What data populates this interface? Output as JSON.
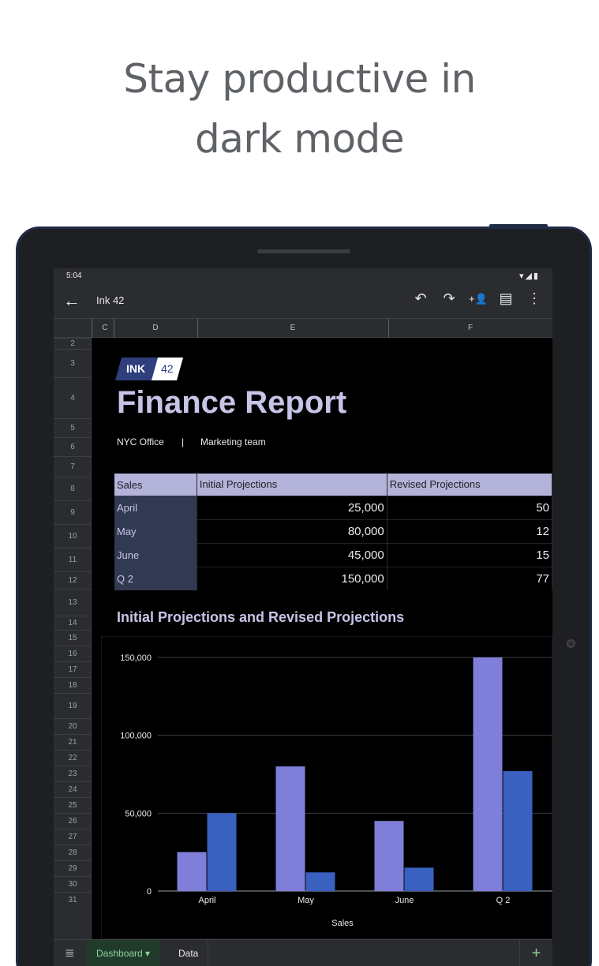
{
  "headline": {
    "line1": "Stay productive in",
    "line2": "dark mode"
  },
  "status": {
    "time": "5:04",
    "icons": "▾◢▮"
  },
  "appbar": {
    "title": "Ink 42",
    "back_icon": "←",
    "undo_icon": "↶",
    "redo_icon": "↷",
    "share_icon": "+👤",
    "comment_icon": "▤",
    "more_icon": "⋮"
  },
  "columns": [
    "C",
    "D",
    "E",
    "F"
  ],
  "rows": [
    "2",
    "3",
    "4",
    "5",
    "6",
    "7",
    "8",
    "9",
    "10",
    "11",
    "12",
    "13",
    "14",
    "15",
    "16",
    "17",
    "18",
    "19",
    "20",
    "21",
    "22",
    "23",
    "24",
    "25",
    "26",
    "27",
    "28",
    "29",
    "30",
    "31"
  ],
  "logo": {
    "left": "INK",
    "right": "42"
  },
  "report": {
    "title": "Finance Report",
    "office": "NYC Office",
    "divider": "|",
    "team": "Marketing team"
  },
  "table": {
    "headers": [
      "Sales",
      "Initial Projections",
      "Revised Projections"
    ],
    "rows": [
      [
        "April",
        "25,000",
        "50"
      ],
      [
        "May",
        "80,000",
        "12"
      ],
      [
        "June",
        "45,000",
        "15"
      ],
      [
        "Q 2",
        "150,000",
        "77"
      ]
    ]
  },
  "chart_title": "Initial Projections and Revised Projections",
  "chart_data": {
    "type": "bar",
    "categories": [
      "April",
      "May",
      "June",
      "Q 2"
    ],
    "series": [
      {
        "name": "Initial Projections",
        "values": [
          25000,
          80000,
          45000,
          150000
        ],
        "color": "#7f7fd9"
      },
      {
        "name": "Revised Projections",
        "values": [
          50000,
          12000,
          15000,
          77000
        ],
        "color": "#3a60c0"
      }
    ],
    "yticks": [
      "0",
      "50,000",
      "100,000",
      "150,000"
    ],
    "ylim": [
      0,
      150000
    ],
    "xlabel": "Sales",
    "grid": true
  },
  "tabs": {
    "menu_icon": "≣",
    "active": "Dashboard ▾",
    "second": "Data",
    "add_icon": "+"
  },
  "colors": {
    "accent": "#8bd39a",
    "header_fill": "#b4b3da",
    "title": "#c6c5e8"
  }
}
